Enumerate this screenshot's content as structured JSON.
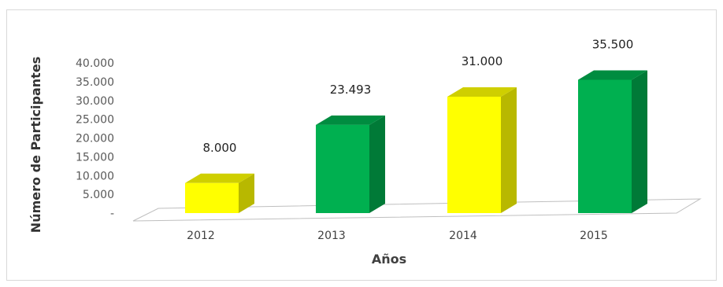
{
  "chart_data": {
    "type": "bar",
    "title": "",
    "xlabel": "Años",
    "ylabel": "Número de Participantes",
    "categories": [
      "2012",
      "2013",
      "2014",
      "2015"
    ],
    "values": [
      8000,
      23493,
      31000,
      35500
    ],
    "data_labels": [
      "8.000",
      "23.493",
      "31.000",
      "35.500"
    ],
    "yticks": [
      "-",
      "5.000",
      "10.000",
      "15.000",
      "20.000",
      "25.000",
      "30.000",
      "35.000",
      "40.000"
    ],
    "ylim": [
      0,
      40000
    ],
    "grid": false,
    "legend": "none",
    "bar_colors": [
      "#FFFF00",
      "#00B050",
      "#FFFF00",
      "#00B050"
    ],
    "bar_side_colors": [
      "#B8B800",
      "#007A37",
      "#B8B800",
      "#007A37"
    ],
    "bar_top_colors": [
      "#CFCF00",
      "#008C40",
      "#CFCF00",
      "#008C40"
    ]
  }
}
